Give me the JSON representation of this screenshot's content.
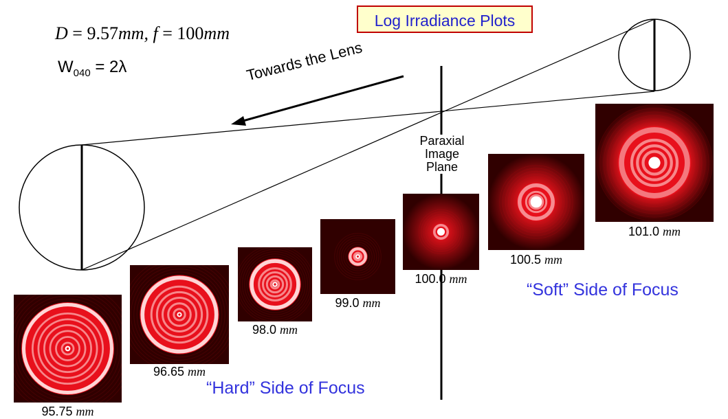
{
  "title": "Log Irradiance Plots",
  "params": {
    "D_label": "D",
    "D_value": "= 9.57",
    "D_unit": "mm,",
    "f_label": "f",
    "f_value": "= 100",
    "f_unit": "mm",
    "w_label": "W",
    "w_sub": "040",
    "w_value": "= 2λ"
  },
  "arrow_label": "Towards the Lens",
  "paraxial_label": [
    "Paraxial",
    "Image",
    "Plane"
  ],
  "hard_side_label": "“Hard” Side of Focus",
  "soft_side_label": "“Soft” Side of Focus",
  "colors": {
    "title_border": "#c00000",
    "title_fill": "#ffffcc",
    "blue_text": "#3333dd",
    "ring_red": "#e8101c",
    "background_dark": "#300000"
  },
  "plots": [
    {
      "value": "95.75",
      "unit": "mm",
      "rings": 6
    },
    {
      "value": "96.65",
      "unit": "mm",
      "rings": 5
    },
    {
      "value": "98.0",
      "unit": "mm",
      "rings": 4
    },
    {
      "value": "99.0",
      "unit": "mm",
      "rings": 3
    },
    {
      "value": "100.0",
      "unit": "mm",
      "rings": 2
    },
    {
      "value": "100.5",
      "unit": "mm",
      "rings": 3
    },
    {
      "value": "101.0",
      "unit": "mm",
      "rings": 4
    }
  ]
}
